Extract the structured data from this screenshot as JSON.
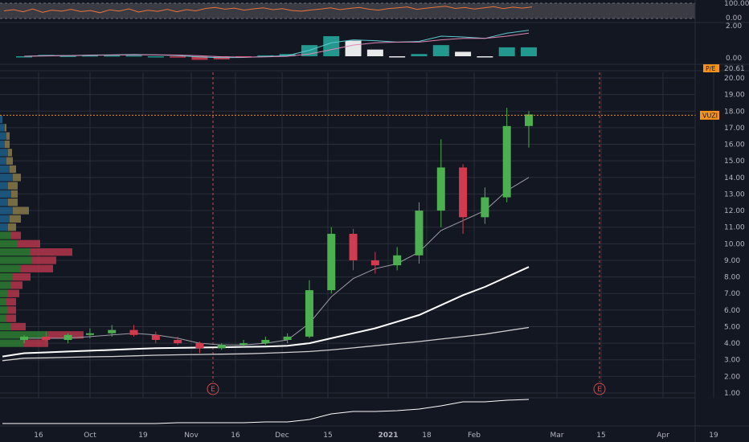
{
  "colors": {
    "background": "#131722",
    "grid": "#2a2e39",
    "bull": "#26a69a",
    "bull_candle": "#4caf50",
    "bear": "#d13a4f",
    "rsi_line": "#e8743b",
    "macd_line": "#5ec8d0",
    "signal_line": "#e087b4",
    "ma_fast": "#9e9ea8",
    "ma_mid": "#ffffff",
    "ma_slow": "#d0d0d0",
    "price_line": "#f7931a",
    "earnings": "#d04b4b",
    "vp_up": "#2e7d32",
    "vp_down": "#b5354a",
    "vp_up_hi": "#1e5e8a",
    "vp_down_hi": "#8a7a4a"
  },
  "rsi_panel": {
    "axis_labels": [
      "100.00",
      "0.00"
    ]
  },
  "macd_panel": {
    "axis_labels": [
      "2.00",
      "0.00"
    ]
  },
  "pe_panel": {
    "tag": "P/E",
    "value": "20.61"
  },
  "price_panel": {
    "symbol_tag": "VUZI",
    "last_price": 17.75,
    "earnings_marker": "E",
    "y_ticks": [
      "20.00",
      "19.00",
      "18.00",
      "17.00",
      "16.00",
      "15.00",
      "14.00",
      "13.00",
      "12.00",
      "11.00",
      "10.00",
      "9.00",
      "8.00",
      "7.00",
      "6.00",
      "5.00",
      "4.00",
      "3.00",
      "2.00",
      "1.00"
    ]
  },
  "x_axis": {
    "labels": [
      "16",
      "Oct",
      "19",
      "Nov",
      "16",
      "Dec",
      "15",
      "2021",
      "18",
      "Feb",
      "Mar",
      "15",
      "Apr",
      "19"
    ]
  },
  "chart_data": {
    "type": "candlestick",
    "symbol": "VUZI",
    "x_labels": [
      "16",
      "Oct",
      "19",
      "Nov",
      "16",
      "Dec",
      "15",
      "2021",
      "18",
      "Feb",
      "Mar",
      "15",
      "Apr",
      "19"
    ],
    "ylim": [
      0.5,
      20.5
    ],
    "last_price": 17.75,
    "earnings_markers": [
      "Nov",
      "Mar"
    ],
    "candles": [
      {
        "d": "Sep-16",
        "o": 4.2,
        "h": 4.5,
        "l": 4.0,
        "c": 4.4
      },
      {
        "d": "Sep-23",
        "o": 4.4,
        "h": 4.7,
        "l": 4.1,
        "c": 4.2
      },
      {
        "d": "Sep-30",
        "o": 4.2,
        "h": 4.6,
        "l": 4.0,
        "c": 4.5
      },
      {
        "d": "Oct-07",
        "o": 4.5,
        "h": 4.9,
        "l": 4.3,
        "c": 4.6
      },
      {
        "d": "Oct-14",
        "o": 4.6,
        "h": 5.1,
        "l": 4.4,
        "c": 4.8
      },
      {
        "d": "Oct-21",
        "o": 4.8,
        "h": 5.1,
        "l": 4.4,
        "c": 4.5
      },
      {
        "d": "Oct-28",
        "o": 4.5,
        "h": 4.7,
        "l": 4.0,
        "c": 4.2
      },
      {
        "d": "Nov-04",
        "o": 4.2,
        "h": 4.4,
        "l": 3.9,
        "c": 4.0
      },
      {
        "d": "Nov-11",
        "o": 4.0,
        "h": 4.1,
        "l": 3.4,
        "c": 3.7
      },
      {
        "d": "Nov-18",
        "o": 3.7,
        "h": 4.0,
        "l": 3.6,
        "c": 3.9
      },
      {
        "d": "Nov-25",
        "o": 3.9,
        "h": 4.2,
        "l": 3.8,
        "c": 4.0
      },
      {
        "d": "Dec-02",
        "o": 4.0,
        "h": 4.4,
        "l": 3.9,
        "c": 4.2
      },
      {
        "d": "Dec-09",
        "o": 4.2,
        "h": 4.6,
        "l": 4.0,
        "c": 4.4
      },
      {
        "d": "Dec-16",
        "o": 4.4,
        "h": 7.8,
        "l": 4.3,
        "c": 7.2
      },
      {
        "d": "Dec-23",
        "o": 7.2,
        "h": 11.0,
        "l": 7.0,
        "c": 10.6
      },
      {
        "d": "Dec-30",
        "o": 10.6,
        "h": 10.9,
        "l": 8.4,
        "c": 9.0
      },
      {
        "d": "Jan-06",
        "o": 9.0,
        "h": 9.5,
        "l": 8.2,
        "c": 8.7
      },
      {
        "d": "Jan-13",
        "o": 8.7,
        "h": 9.8,
        "l": 8.4,
        "c": 9.3
      },
      {
        "d": "Jan-20",
        "o": 9.3,
        "h": 12.5,
        "l": 8.8,
        "c": 12.0
      },
      {
        "d": "Jan-27",
        "o": 12.0,
        "h": 16.3,
        "l": 11.0,
        "c": 14.6
      },
      {
        "d": "Feb-03",
        "o": 14.6,
        "h": 14.8,
        "l": 10.6,
        "c": 11.6
      },
      {
        "d": "Feb-10",
        "o": 11.6,
        "h": 13.4,
        "l": 11.2,
        "c": 12.8
      },
      {
        "d": "Feb-17",
        "o": 12.8,
        "h": 18.2,
        "l": 12.5,
        "c": 17.1
      },
      {
        "d": "Feb-24",
        "o": 17.1,
        "h": 18.0,
        "l": 15.8,
        "c": 17.8
      }
    ],
    "ma_fast": [
      4.3,
      4.3,
      4.3,
      4.4,
      4.5,
      4.6,
      4.5,
      4.3,
      4.0,
      3.9,
      3.9,
      4.0,
      4.2,
      5.2,
      6.8,
      7.9,
      8.5,
      8.8,
      9.5,
      10.8,
      11.4,
      12.0,
      13.2,
      14.0
    ],
    "ma_mid": [
      3.4,
      3.45,
      3.5,
      3.55,
      3.6,
      3.65,
      3.7,
      3.72,
      3.74,
      3.76,
      3.78,
      3.8,
      3.85,
      4.0,
      4.3,
      4.6,
      4.9,
      5.3,
      5.7,
      6.3,
      6.9,
      7.4,
      8.0,
      8.6
    ],
    "ma_slow": [
      3.1,
      3.12,
      3.15,
      3.18,
      3.2,
      3.24,
      3.28,
      3.3,
      3.32,
      3.34,
      3.36,
      3.4,
      3.45,
      3.5,
      3.6,
      3.72,
      3.85,
      3.98,
      4.1,
      4.25,
      4.4,
      4.55,
      4.75,
      4.95
    ]
  }
}
